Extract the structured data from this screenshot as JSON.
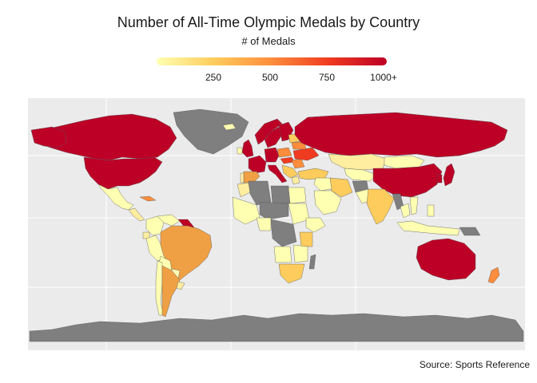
{
  "title": "Number of All-Time Olympic Medals by Country",
  "legend": {
    "title": "# of Medals",
    "ticks": [
      "250",
      "500",
      "750",
      "1000+"
    ],
    "tick_values": [
      250,
      500,
      750,
      1000
    ],
    "range": [
      0,
      1000
    ],
    "colors": [
      "#ffffb2",
      "#fecc5c",
      "#fd8d3c",
      "#f03b20",
      "#bd0026"
    ]
  },
  "map": {
    "background": "#ebebeb",
    "no_data_color": "#7f7f7f",
    "grid": true
  },
  "source": "Source: Sports Reference"
}
